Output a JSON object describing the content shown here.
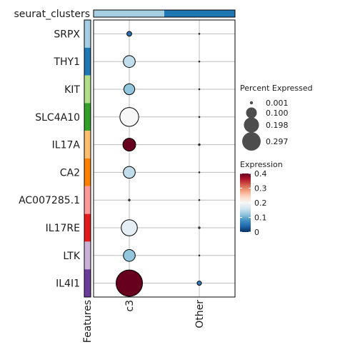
{
  "chart_data": {
    "type": "scatter",
    "subtype": "dotplot",
    "top_annotation": {
      "label": "seurat_clusters",
      "colors": [
        "#a6cee3",
        "#1f78b4"
      ]
    },
    "left_annotation": {
      "label": "Features",
      "colors": [
        "#a6cee3",
        "#1f78b4",
        "#b2df8a",
        "#33a02c",
        "#fdbf6f",
        "#ff7f00",
        "#fb9a99",
        "#e31a1c",
        "#cab2d6",
        "#6a3d9a"
      ]
    },
    "features": [
      "SRPX",
      "THY1",
      "KIT",
      "SLC4A10",
      "IL17A",
      "CA2",
      "AC007285.1",
      "IL17RE",
      "LTK",
      "IL4I1"
    ],
    "groups": [
      "c3",
      "Other"
    ],
    "percent_expressed": [
      [
        0.01,
        0.001
      ],
      [
        0.06,
        0.001
      ],
      [
        0.05,
        0.001
      ],
      [
        0.15,
        0.001
      ],
      [
        0.07,
        0.002
      ],
      [
        0.06,
        0.001
      ],
      [
        0.002,
        0.001
      ],
      [
        0.11,
        0.002
      ],
      [
        0.06,
        0.001
      ],
      [
        0.297,
        0.008
      ]
    ],
    "expression": [
      [
        0.05,
        0.0
      ],
      [
        0.15,
        0.0
      ],
      [
        0.12,
        0.0
      ],
      [
        0.2,
        0.0
      ],
      [
        0.4,
        0.0
      ],
      [
        0.15,
        0.0
      ],
      [
        0.0,
        0.0
      ],
      [
        0.18,
        0.0
      ],
      [
        0.12,
        0.0
      ],
      [
        0.4,
        0.06
      ]
    ],
    "size_legend": {
      "title": "Percent Expressed",
      "entries": [
        {
          "value": 0.001,
          "label": "0.001"
        },
        {
          "value": 0.1,
          "label": "0.100"
        },
        {
          "value": 0.198,
          "label": "0.198"
        },
        {
          "value": 0.297,
          "label": "0.297"
        }
      ]
    },
    "color_legend": {
      "title": "Expression",
      "range": [
        0,
        0.4
      ],
      "ticks": [
        "0",
        "0.1",
        "0.2",
        "0.3",
        "0.4"
      ],
      "colors": [
        "#053061",
        "#2166ac",
        "#4393c3",
        "#92c5de",
        "#d1e5f0",
        "#f7f7f7",
        "#fddbc7",
        "#f4a582",
        "#d6604d",
        "#b2182b",
        "#67001f"
      ]
    },
    "grid": true
  }
}
